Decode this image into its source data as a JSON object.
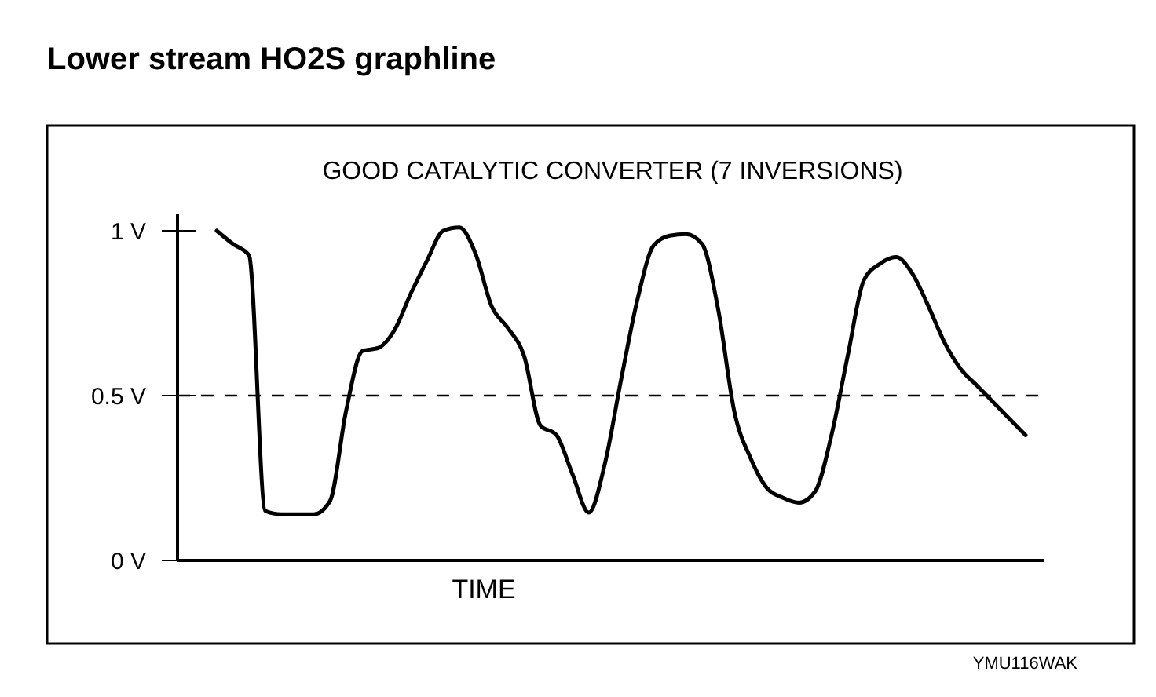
{
  "chart_data": {
    "type": "line",
    "title": "Lower stream HO2S graphline",
    "subtitle": "GOOD CATALYTIC CONVERTER (7 INVERSIONS)",
    "xlabel": "TIME",
    "categories": [
      null,
      null,
      null,
      null,
      null,
      null,
      null,
      null,
      null,
      null,
      null,
      null,
      null,
      null,
      null,
      null,
      null,
      null,
      null,
      null,
      null,
      null,
      null,
      null,
      null,
      null,
      null,
      null,
      null,
      null,
      null,
      null,
      null,
      null,
      null,
      null,
      null,
      null,
      null,
      null,
      null,
      null,
      null,
      null,
      null,
      null,
      null,
      null,
      null,
      null,
      null
    ],
    "series": [
      {
        "color": "#000000",
        "values": [
          1.0,
          0.96,
          0.925,
          0.15,
          0.14,
          0.14,
          0.14,
          0.18,
          0.455,
          0.635,
          0.645,
          0.7,
          0.81,
          0.91,
          1.0,
          1.01,
          0.93,
          0.77,
          0.705,
          0.62,
          0.41,
          0.38,
          0.26,
          0.145,
          0.295,
          0.55,
          0.79,
          0.955,
          0.985,
          0.99,
          0.96,
          0.76,
          0.45,
          0.31,
          0.22,
          0.19,
          0.175,
          0.21,
          0.38,
          0.62,
          0.85,
          0.9,
          0.92,
          0.87,
          0.77,
          0.66,
          0.58,
          0.53,
          0.48,
          0.43,
          0.38
        ]
      }
    ],
    "ylim": [
      0,
      1.05
    ],
    "yticks": [
      {
        "value": 0,
        "label": "0 V"
      },
      {
        "value": 0.5,
        "label": "0.5 V"
      },
      {
        "value": 1,
        "label": "1 V"
      }
    ],
    "tick_labels": "y",
    "grid": false,
    "line_style": "solid",
    "marker": "none",
    "ref_lines": [
      {
        "axis": "y",
        "value": 0.5,
        "color": "#000000",
        "line_style": "dashed"
      }
    ],
    "annotations": [
      "YMU116WAK"
    ]
  }
}
